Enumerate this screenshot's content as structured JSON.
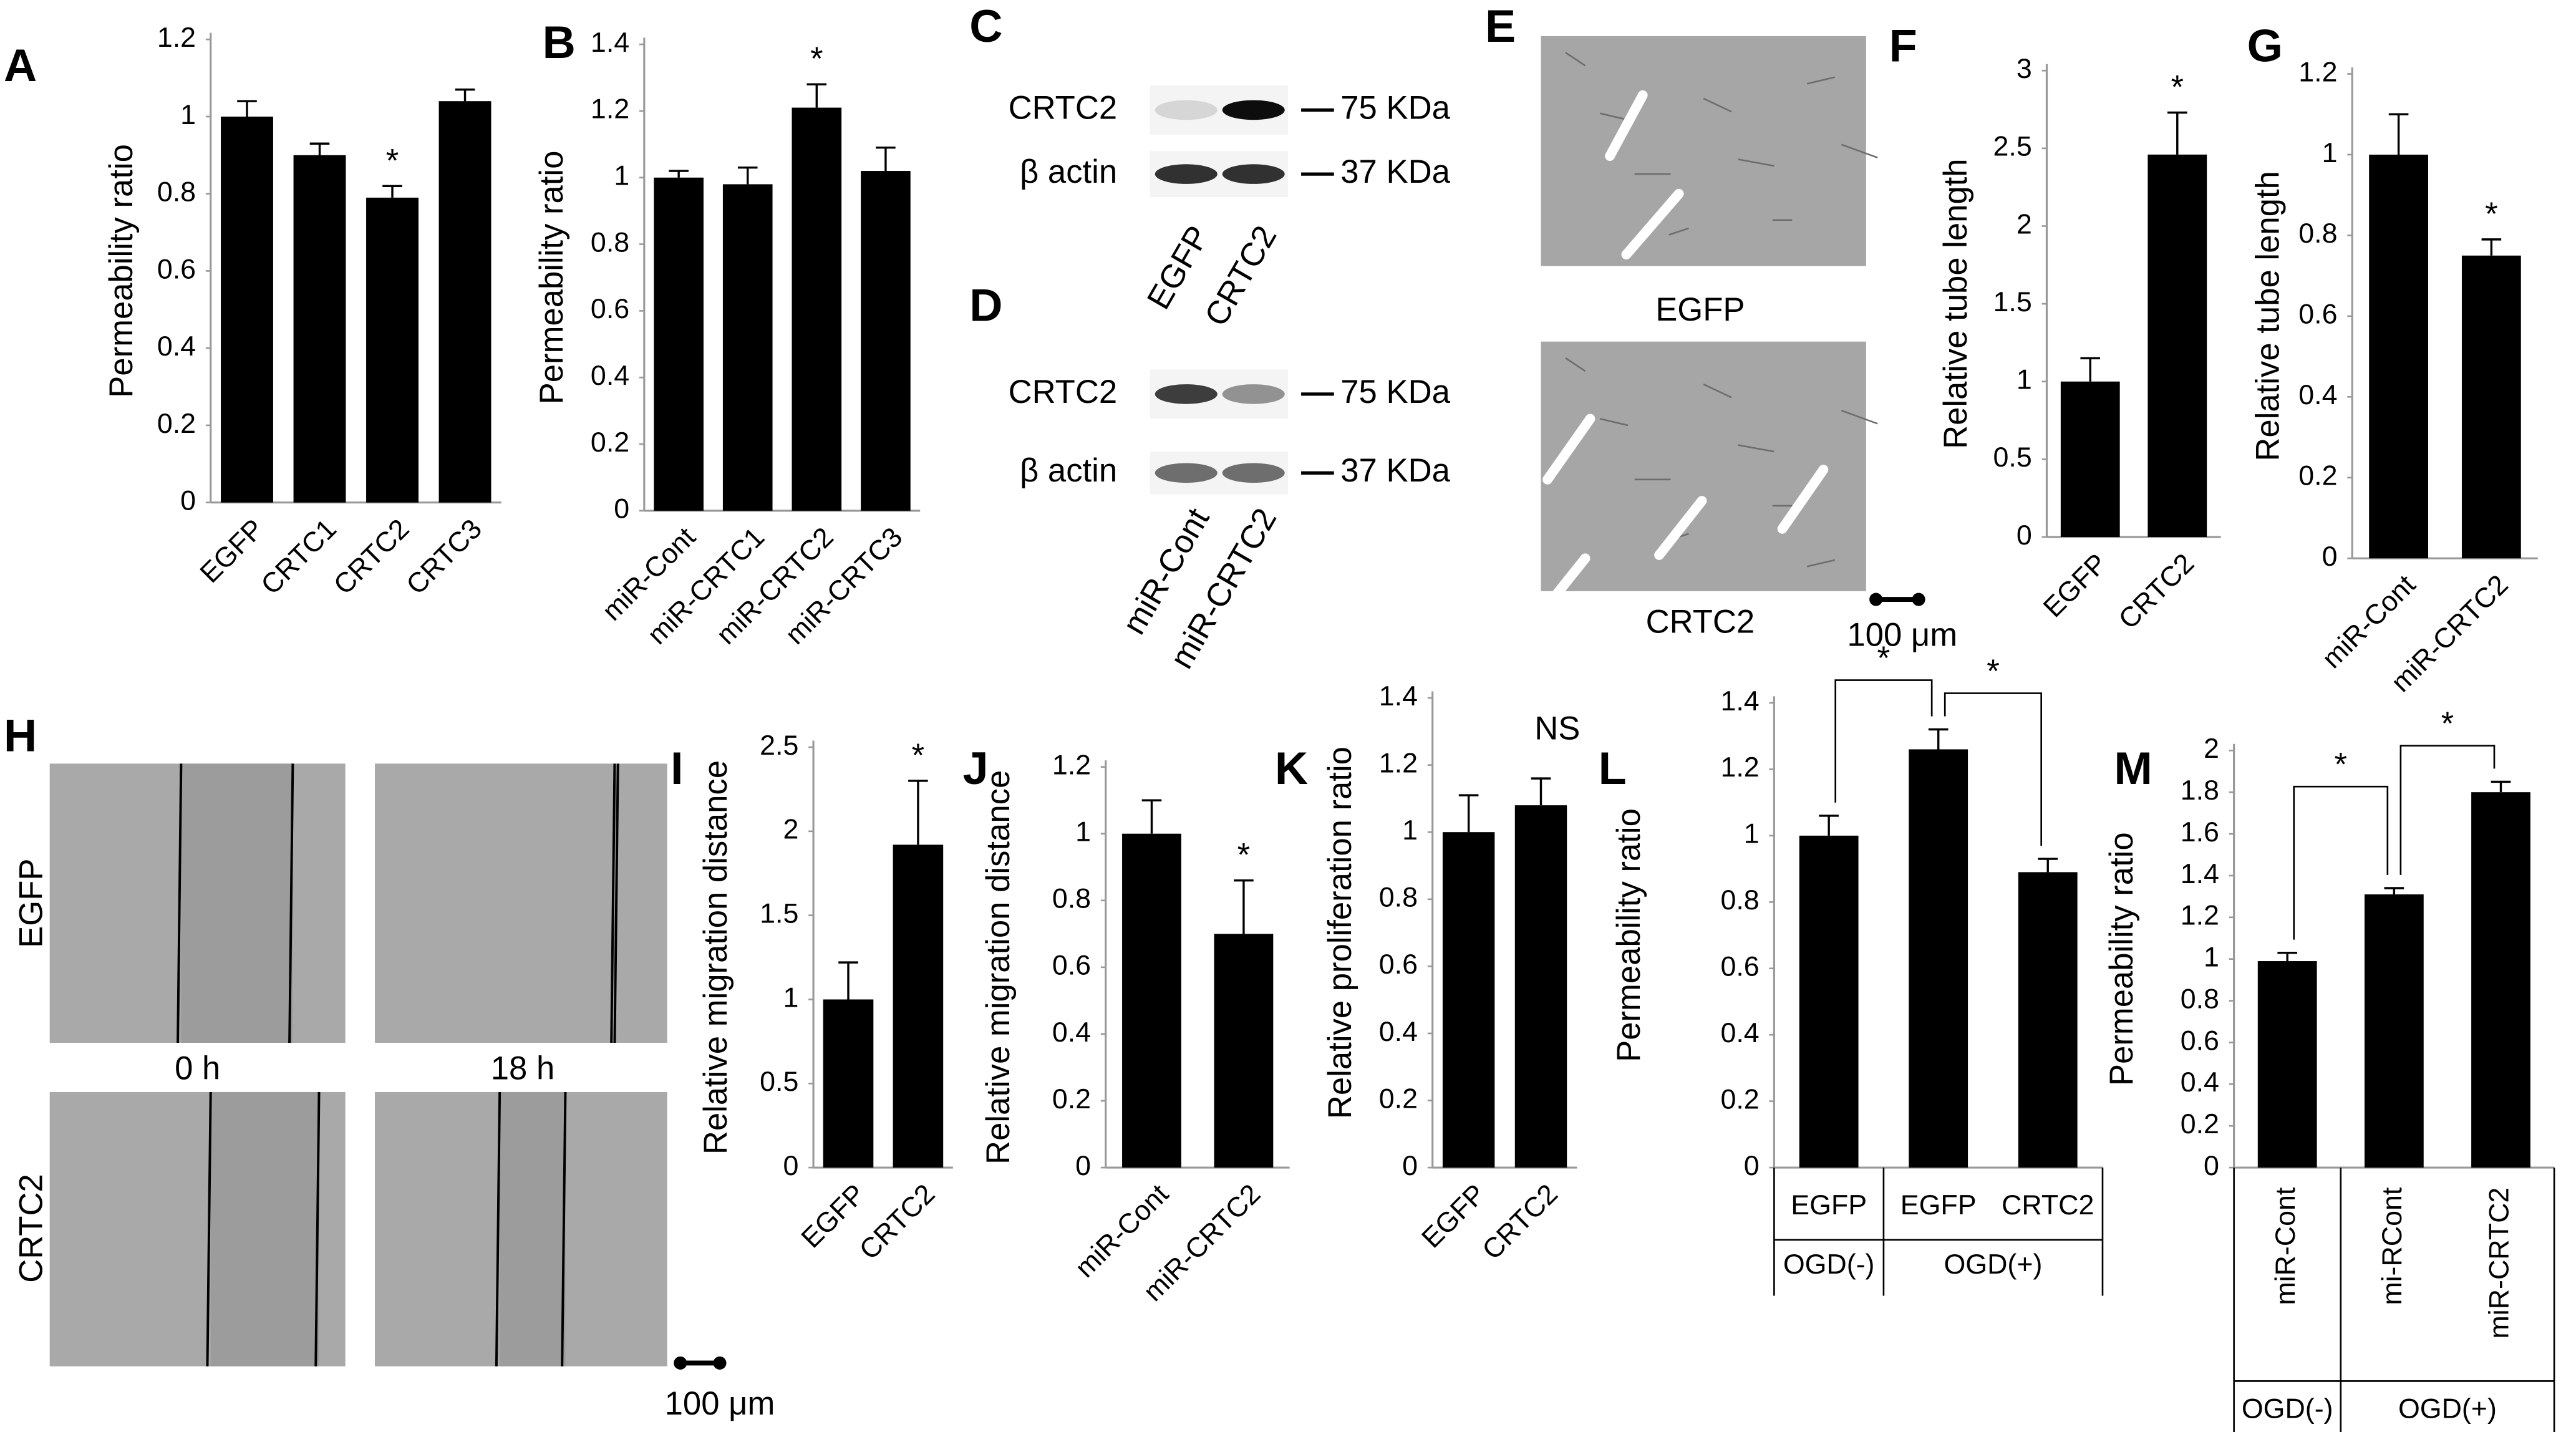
{
  "chart_data": [
    {
      "type": "bar",
      "panel": "A",
      "ylabel": "Permeability ratio",
      "categories": [
        "EGFP",
        "CRTC1",
        "CRTC2",
        "CRTC3"
      ],
      "values": [
        1.0,
        0.9,
        0.79,
        1.04
      ],
      "errors": [
        0.04,
        0.03,
        0.03,
        0.03
      ],
      "significance": [
        null,
        null,
        "*",
        null
      ],
      "ylim": [
        0,
        1.2
      ],
      "yticks": [
        0,
        0.2,
        0.4,
        0.6,
        0.8,
        1,
        1.2
      ],
      "color": "#000000"
    },
    {
      "type": "bar",
      "panel": "B",
      "ylabel": "Permeability ratio",
      "categories": [
        "miR-Cont",
        "miR-CRTC1",
        "miR-CRTC2",
        "miR-CRTC3"
      ],
      "values": [
        1.0,
        0.98,
        1.21,
        1.02
      ],
      "errors": [
        0.02,
        0.05,
        0.07,
        0.07
      ],
      "significance": [
        null,
        null,
        "*",
        null
      ],
      "ylim": [
        0,
        1.4
      ],
      "yticks": [
        0,
        0.2,
        0.4,
        0.6,
        0.8,
        1,
        1.2,
        1.4
      ],
      "color": "#000000"
    },
    {
      "type": "bar",
      "panel": "F",
      "ylabel": "Relative tube length",
      "categories": [
        "EGFP",
        "CRTC2"
      ],
      "values": [
        1.0,
        2.46
      ],
      "errors": [
        0.15,
        0.27
      ],
      "significance": [
        null,
        "*"
      ],
      "ylim": [
        0,
        3
      ],
      "yticks": [
        0,
        0.5,
        1,
        1.5,
        2,
        2.5,
        3
      ],
      "color": "#000000"
    },
    {
      "type": "bar",
      "panel": "G",
      "ylabel": "Relative tube length",
      "categories": [
        "miR-Cont",
        "miR-CRTC2"
      ],
      "values": [
        1.0,
        0.75
      ],
      "errors": [
        0.1,
        0.04
      ],
      "significance": [
        null,
        "*"
      ],
      "ylim": [
        0,
        1.2
      ],
      "yticks": [
        0,
        0.2,
        0.4,
        0.6,
        0.8,
        1,
        1.2
      ],
      "color": "#000000"
    },
    {
      "type": "bar",
      "panel": "I",
      "ylabel": "Relative migration distance",
      "categories": [
        "EGFP",
        "CRTC2"
      ],
      "values": [
        1.0,
        1.92
      ],
      "errors": [
        0.22,
        0.38
      ],
      "significance": [
        null,
        "*"
      ],
      "ylim": [
        0,
        2.5
      ],
      "yticks": [
        0,
        0.5,
        1,
        1.5,
        2,
        2.5
      ],
      "color": "#000000"
    },
    {
      "type": "bar",
      "panel": "J",
      "ylabel": "Relative migration distance",
      "categories": [
        "miR-Cont",
        "miR-CRTC2"
      ],
      "values": [
        1.0,
        0.7
      ],
      "errors": [
        0.1,
        0.16
      ],
      "significance": [
        null,
        "*"
      ],
      "ylim": [
        0,
        1.2
      ],
      "yticks": [
        0,
        0.2,
        0.4,
        0.6,
        0.8,
        1,
        1.2
      ],
      "color": "#000000"
    },
    {
      "type": "bar",
      "panel": "K",
      "ylabel": "Relative proliferation ratio",
      "categories": [
        "EGFP",
        "CRTC2"
      ],
      "values": [
        1.0,
        1.08
      ],
      "errors": [
        0.11,
        0.08
      ],
      "annotation": "NS",
      "ylim": [
        0,
        1.4
      ],
      "yticks": [
        0,
        0.2,
        0.4,
        0.6,
        0.8,
        1,
        1.2,
        1.4
      ],
      "color": "#000000"
    },
    {
      "type": "bar",
      "panel": "L",
      "ylabel": "Permeability ratio",
      "categories": [
        "EGFP",
        "EGFP",
        "CRTC2"
      ],
      "values": [
        1.0,
        1.26,
        0.89
      ],
      "errors": [
        0.06,
        0.06,
        0.04
      ],
      "brackets": [
        "*",
        "*"
      ],
      "groups": [
        "OGD(-)",
        "OGD(+)"
      ],
      "ylim": [
        0,
        1.4
      ],
      "yticks": [
        0,
        0.2,
        0.4,
        0.6,
        0.8,
        1,
        1.2,
        1.4
      ],
      "color": "#000000"
    },
    {
      "type": "bar",
      "panel": "M",
      "ylabel": "Permeability ratio",
      "categories": [
        "miR-Cont",
        "mi-RCont",
        "miR-CRTC2"
      ],
      "values": [
        0.99,
        1.31,
        1.8
      ],
      "errors": [
        0.04,
        0.03,
        0.05
      ],
      "brackets": [
        "*",
        "*"
      ],
      "groups": [
        "OGD(-)",
        "OGD(+)"
      ],
      "ylim": [
        0,
        2
      ],
      "yticks": [
        0,
        0.2,
        0.4,
        0.6,
        0.8,
        1,
        1.2,
        1.4,
        1.6,
        1.8,
        2
      ],
      "color": "#000000"
    }
  ],
  "blots": [
    {
      "panel": "C",
      "rows": [
        "CRTC2",
        "β actin"
      ],
      "markers": [
        "75 KDa",
        "37 KDa"
      ],
      "lanes": [
        "EGFP",
        "CRTC2"
      ]
    },
    {
      "panel": "D",
      "rows": [
        "CRTC2",
        "β actin"
      ],
      "markers": [
        "75 KDa",
        "37 KDa"
      ],
      "lanes": [
        "miR-Cont",
        "miR-CRTC2"
      ]
    }
  ],
  "tube_images": {
    "panel": "E",
    "labels": [
      "EGFP",
      "CRTC2"
    ],
    "scale": "100 μm"
  },
  "migration_images": {
    "panel": "H",
    "rows": [
      "EGFP",
      "CRTC2"
    ],
    "times": [
      "0 h",
      "18 h"
    ],
    "scale": "100 μm"
  }
}
